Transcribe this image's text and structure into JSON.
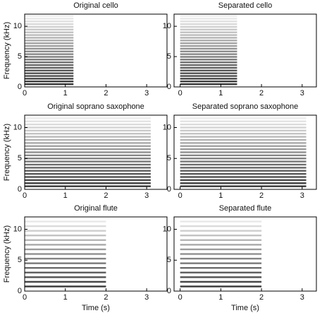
{
  "chart_data": [
    {
      "type": "spectrogram",
      "title": "Original cello",
      "ylabel": "Frequency (kHz)",
      "xlim": [
        0,
        3.5
      ],
      "ylim": [
        0,
        12
      ],
      "xticks": [
        0,
        1,
        2,
        3
      ],
      "yticks": [
        0,
        5,
        10
      ],
      "extent": [
        0,
        1.2
      ],
      "harmonic_spacing": 0.45,
      "color": "#222222"
    },
    {
      "type": "spectrogram",
      "title": "Separated cello",
      "xlim": [
        -0.15,
        3.35
      ],
      "ylim": [
        0,
        12
      ],
      "xticks": [
        0,
        1,
        2,
        3
      ],
      "yticks": [
        0,
        5,
        10
      ],
      "extent": [
        0,
        1.4
      ],
      "harmonic_spacing": 0.45,
      "color": "#222222"
    },
    {
      "type": "spectrogram",
      "title": "Original soprano saxophone",
      "ylabel": "Frequency (kHz)",
      "xlim": [
        0,
        3.5
      ],
      "ylim": [
        0,
        12
      ],
      "xticks": [
        0,
        1,
        2,
        3
      ],
      "yticks": [
        0,
        5,
        10
      ],
      "extent": [
        0,
        3.1
      ],
      "harmonic_spacing": 0.5,
      "color": "#222222"
    },
    {
      "type": "spectrogram",
      "title": "Separated soprano saxophone",
      "xlim": [
        -0.15,
        3.35
      ],
      "ylim": [
        0,
        12
      ],
      "xticks": [
        0,
        1,
        2,
        3
      ],
      "yticks": [
        0,
        5,
        10
      ],
      "extent": [
        0,
        3.1
      ],
      "harmonic_spacing": 0.5,
      "color": "#222222"
    },
    {
      "type": "spectrogram",
      "title": "Original flute",
      "ylabel": "Frequency (kHz)",
      "xlabel": "Time (s)",
      "xlim": [
        0,
        3.5
      ],
      "ylim": [
        0,
        12
      ],
      "xticks": [
        0,
        1,
        2,
        3
      ],
      "yticks": [
        0,
        5,
        10
      ],
      "extent": [
        0,
        2.0
      ],
      "harmonic_spacing": 0.75,
      "color": "#222222"
    },
    {
      "type": "spectrogram",
      "title": "Separated flute",
      "xlabel": "Time (s)",
      "xlim": [
        -0.15,
        3.35
      ],
      "ylim": [
        0,
        12
      ],
      "xticks": [
        0,
        1,
        2,
        3
      ],
      "yticks": [
        0,
        5,
        10
      ],
      "extent": [
        0,
        2.0
      ],
      "harmonic_spacing": 0.75,
      "color": "#222222"
    }
  ]
}
